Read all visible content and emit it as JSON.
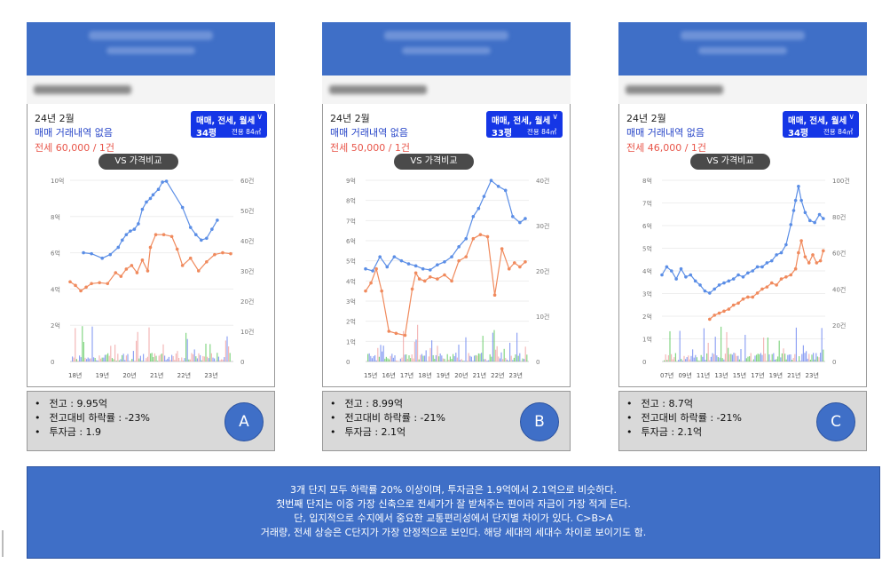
{
  "panels": [
    {
      "date": "24년 2월",
      "no_trade": "매매 거래내역 없음",
      "jeonse": "전세 60,000 / 1건",
      "type_label": "매매, 전세, 월세",
      "pyeong": "34평",
      "area": "전용 84㎡",
      "vs_label": "VS 가격비교",
      "info": [
        "전고 : 9.95억",
        "전고대비 하락률 : -23%",
        "투자금 : 1.9"
      ],
      "badge": "A"
    },
    {
      "date": "24년 2월",
      "no_trade": "매매 거래내역 없음",
      "jeonse": "전세 50,000 / 1건",
      "type_label": "매매, 전세, 월세",
      "pyeong": "33평",
      "area": "전용 84㎡",
      "vs_label": "VS 가격비교",
      "info": [
        "전고 : 8.99억",
        "전고대비 하락률 : -21%",
        "투자금 : 2.1억"
      ],
      "badge": "B"
    },
    {
      "date": "24년 2월",
      "no_trade": "매매 거래내역 없음",
      "jeonse": "전세 46,000 / 1건",
      "type_label": "매매, 전세, 월세",
      "pyeong": "34평",
      "area": "전용 84㎡",
      "vs_label": "VS 가격비교",
      "info": [
        "전고 : 8.7억",
        "전고대비 하락률 : -21%",
        "투자금 : 2.1억"
      ],
      "badge": "C"
    }
  ],
  "summary": [
    "3개 단지 모두 하락률 20% 이상이며, 투자금은 1.9억에서 2.1억으로 비슷하다.",
    "첫번째 단지는 이중 가장 신축으로 전세가가 잘 받쳐주는 편이라 자금이 가장 적게 든다.",
    "단, 입지적으로 수지에서 중요한 교통편리성에서 단지별 차이가 있다. C>B>A",
    "거래량, 전세 상승은 C단지가 가장 안정적으로 보인다. 해당 세대의 세대수 차이로 보이기도 함."
  ],
  "colors": {
    "sale": "#5b8ee6",
    "jeonse": "#f08a5d",
    "vol_blue": "#6b84f0",
    "vol_pink": "#f0a0a0",
    "vol_green": "#5cc85c",
    "accent": "#3f6fc7"
  },
  "chart_data": [
    {
      "type": "line",
      "x_ticks": [
        "18년",
        "19년",
        "20년",
        "21년",
        "22년",
        "23년"
      ],
      "x_range": [
        2018.0,
        2024.1
      ],
      "y_left_ticks": [
        "0",
        "2억",
        "4억",
        "6억",
        "8억",
        "10억"
      ],
      "y_left_range": [
        0,
        10
      ],
      "y_right_ticks": [
        "0",
        "10건",
        "20건",
        "30건",
        "40건",
        "50건",
        "60건"
      ],
      "y_right_range": [
        0,
        60
      ],
      "series": [
        {
          "role": "sale",
          "x": [
            2018.5,
            2018.8,
            2019.2,
            2019.5,
            2019.8,
            2019.95,
            2020.1,
            2020.25,
            2020.4,
            2020.55,
            2020.7,
            2020.85,
            2021.0,
            2021.1,
            2021.3,
            2021.45,
            2021.6,
            2022.2,
            2022.5,
            2022.7,
            2022.9,
            2023.1,
            2023.3,
            2023.5
          ],
          "y": [
            6.0,
            5.95,
            5.7,
            5.9,
            6.3,
            6.7,
            7.0,
            7.2,
            7.3,
            7.6,
            8.4,
            8.8,
            9.0,
            9.2,
            9.5,
            9.9,
            9.95,
            8.5,
            7.4,
            7.0,
            6.7,
            6.8,
            7.3,
            7.8
          ]
        },
        {
          "role": "jeonse",
          "x": [
            2018.0,
            2018.2,
            2018.4,
            2018.6,
            2018.8,
            2019.1,
            2019.4,
            2019.7,
            2019.9,
            2020.1,
            2020.3,
            2020.5,
            2020.7,
            2020.9,
            2021.0,
            2021.2,
            2021.5,
            2021.8,
            2022.0,
            2022.2,
            2022.5,
            2022.8,
            2023.1,
            2023.4,
            2023.7,
            2024.0
          ],
          "y": [
            4.4,
            4.2,
            3.9,
            4.1,
            4.3,
            4.35,
            4.3,
            4.9,
            4.7,
            5.1,
            5.3,
            4.9,
            5.6,
            5.0,
            6.3,
            7.0,
            7.0,
            6.9,
            6.2,
            5.3,
            5.7,
            5.0,
            5.5,
            5.9,
            6.0,
            5.95
          ]
        }
      ]
    },
    {
      "type": "line",
      "x_ticks": [
        "15년",
        "16년",
        "17년",
        "18년",
        "19년",
        "20년",
        "21년",
        "22년",
        "23년"
      ],
      "x_range": [
        2015.0,
        2024.1
      ],
      "y_left_ticks": [
        "0",
        "1억",
        "2억",
        "3억",
        "4억",
        "5억",
        "6억",
        "7억",
        "8억",
        "9억"
      ],
      "y_left_range": [
        0,
        9
      ],
      "y_right_ticks": [
        "0",
        "10건",
        "20건",
        "30건",
        "40건"
      ],
      "y_right_range": [
        0,
        40
      ],
      "series": [
        {
          "role": "sale",
          "x": [
            2015.0,
            2015.4,
            2015.8,
            2016.2,
            2016.6,
            2017.0,
            2017.4,
            2017.8,
            2018.2,
            2018.6,
            2019.0,
            2019.4,
            2019.8,
            2020.2,
            2020.6,
            2021.0,
            2021.3,
            2021.6,
            2022.0,
            2022.4,
            2022.8,
            2023.2,
            2023.6,
            2023.9
          ],
          "y": [
            4.6,
            4.5,
            5.2,
            4.7,
            5.2,
            5.0,
            4.85,
            4.75,
            4.6,
            4.55,
            4.8,
            4.95,
            5.2,
            5.7,
            6.1,
            7.2,
            7.6,
            8.2,
            8.99,
            8.7,
            8.5,
            7.2,
            6.9,
            7.1
          ]
        },
        {
          "role": "jeonse",
          "x": [
            2015.0,
            2015.3,
            2015.6,
            2015.9,
            2016.3,
            2016.7,
            2017.2,
            2017.6,
            2017.8,
            2018.0,
            2018.3,
            2018.6,
            2019.0,
            2019.4,
            2019.8,
            2020.2,
            2020.6,
            2021.0,
            2021.4,
            2021.8,
            2022.2,
            2022.6,
            2023.0,
            2023.3,
            2023.6,
            2023.9
          ],
          "y": [
            3.5,
            3.9,
            4.6,
            3.5,
            1.5,
            1.4,
            1.3,
            3.6,
            4.4,
            4.1,
            4.0,
            4.2,
            4.1,
            4.3,
            4.0,
            5.0,
            5.2,
            6.1,
            6.3,
            6.2,
            3.3,
            5.6,
            4.6,
            4.9,
            4.7,
            4.95
          ]
        }
      ]
    },
    {
      "type": "line",
      "x_ticks": [
        "07년",
        "09년",
        "11년",
        "13년",
        "15년",
        "17년",
        "19년",
        "21년",
        "23년"
      ],
      "x_range": [
        2007.0,
        2024.1
      ],
      "y_left_ticks": [
        "0",
        "1억",
        "2억",
        "3억",
        "4억",
        "5억",
        "6억",
        "7억",
        "8억"
      ],
      "y_left_range": [
        0,
        9
      ],
      "y_right_ticks": [
        "0",
        "20건",
        "40건",
        "60건",
        "80건",
        "100건"
      ],
      "y_right_range": [
        0,
        100
      ],
      "series": [
        {
          "role": "sale",
          "x": [
            2007.0,
            2007.5,
            2008.0,
            2008.5,
            2009.0,
            2009.5,
            2010.0,
            2010.5,
            2011.0,
            2011.5,
            2012.0,
            2012.5,
            2013.0,
            2013.5,
            2014.0,
            2014.5,
            2015.0,
            2015.5,
            2016.0,
            2016.5,
            2017.0,
            2017.5,
            2018.0,
            2018.5,
            2019.0,
            2019.5,
            2020.0,
            2020.5,
            2020.8,
            2021.0,
            2021.3,
            2021.6,
            2022.0,
            2022.5,
            2023.0,
            2023.5,
            2023.9
          ],
          "y": [
            4.3,
            4.7,
            4.5,
            4.1,
            4.6,
            4.2,
            4.3,
            4.0,
            3.8,
            3.5,
            3.4,
            3.6,
            3.8,
            3.9,
            4.0,
            4.1,
            4.3,
            4.2,
            4.4,
            4.5,
            4.7,
            4.7,
            4.9,
            5.0,
            5.3,
            5.4,
            5.8,
            6.8,
            7.5,
            8.0,
            8.7,
            8.0,
            7.4,
            7.0,
            6.9,
            7.3,
            7.1
          ]
        },
        {
          "role": "jeonse",
          "x": [
            2012.0,
            2012.5,
            2013.0,
            2013.5,
            2014.0,
            2014.5,
            2015.0,
            2015.5,
            2016.0,
            2016.5,
            2017.0,
            2017.5,
            2018.0,
            2018.5,
            2019.0,
            2019.5,
            2020.0,
            2020.5,
            2021.0,
            2021.3,
            2021.6,
            2022.0,
            2022.4,
            2022.8,
            2023.2,
            2023.6,
            2023.9
          ],
          "y": [
            2.1,
            2.3,
            2.4,
            2.5,
            2.6,
            2.8,
            2.9,
            3.1,
            3.2,
            3.2,
            3.4,
            3.6,
            3.7,
            3.9,
            3.8,
            4.1,
            4.2,
            4.3,
            4.6,
            5.4,
            6.0,
            5.2,
            4.9,
            5.3,
            4.9,
            5.0,
            5.5
          ]
        }
      ]
    }
  ]
}
